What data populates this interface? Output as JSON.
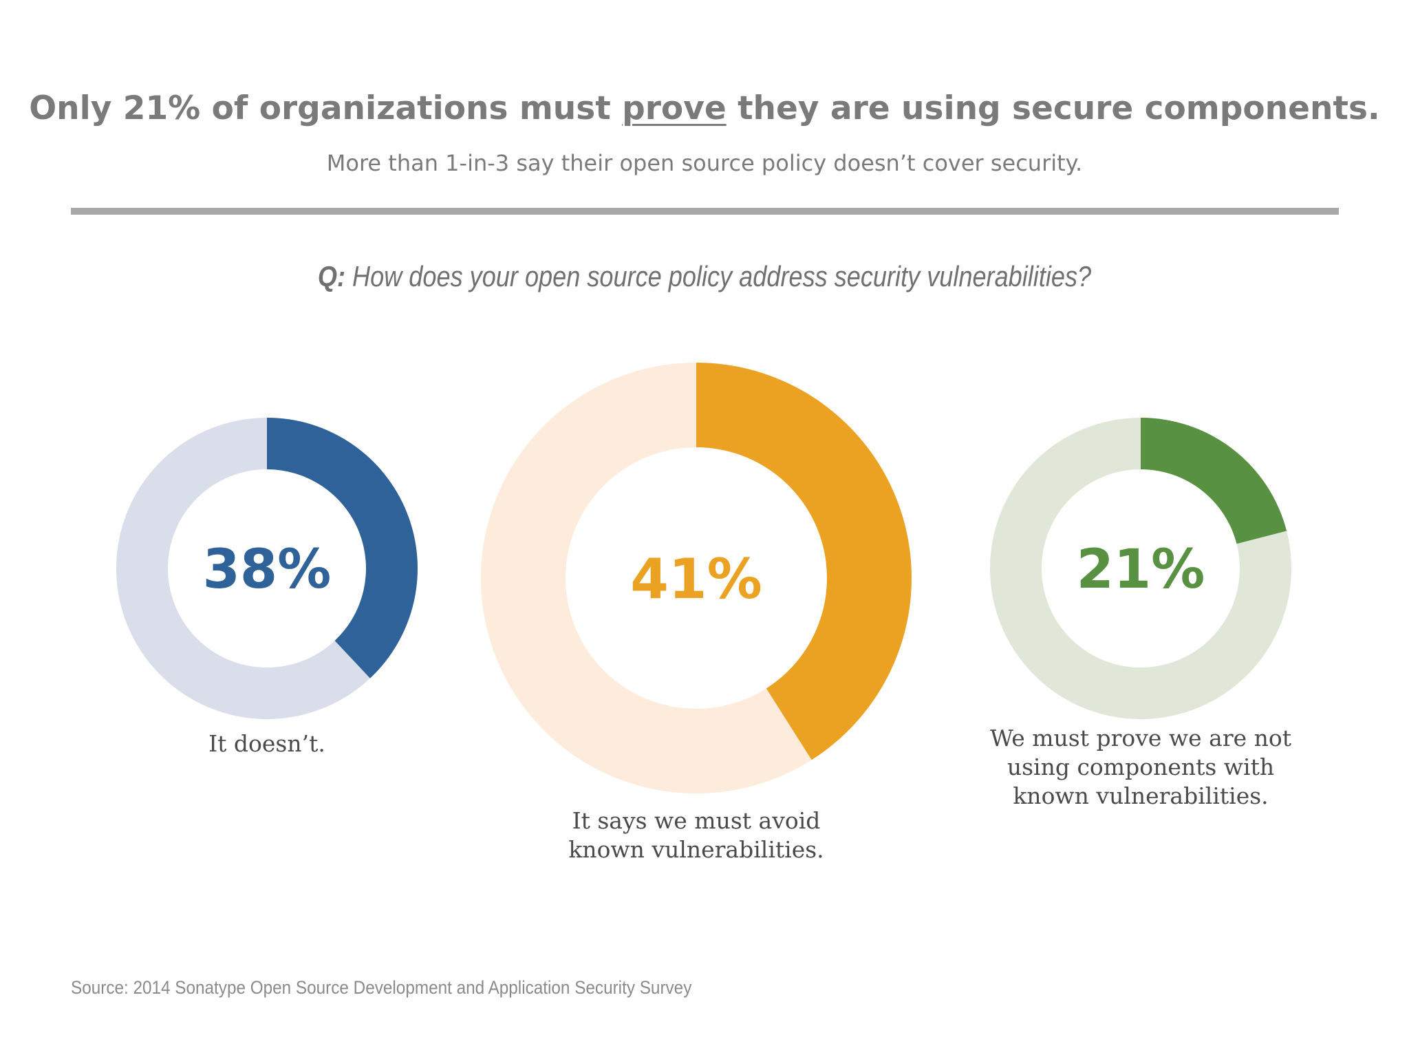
{
  "header": {
    "title_pre": "Only 21% of organizations must ",
    "title_emph": "prove",
    "title_post": " they are using secure components.",
    "subtitle": "More than 1-in-3 say their open source policy doesn’t cover security."
  },
  "question": {
    "prefix": "Q:",
    "text": " How does your open source policy address security vulnerabilities?"
  },
  "chart_data": {
    "type": "pie",
    "series": [
      {
        "name": "It doesn’t.",
        "value": 38,
        "percent_label": "38%",
        "color": "#2e6298",
        "track_color": "#dadeea"
      },
      {
        "name": "It says we must avoid\nknown vulnerabilities.",
        "value": 41,
        "percent_label": "41%",
        "color": "#eba222",
        "track_color": "#fdebdc"
      },
      {
        "name": "We must prove we are not\nusing components with\nknown vulnerabilities.",
        "value": 21,
        "percent_label": "21%",
        "color": "#579141",
        "track_color": "#e0e7d9"
      }
    ]
  },
  "footer": {
    "source": "Source: 2014 Sonatype Open Source Development and Application Security Survey"
  }
}
